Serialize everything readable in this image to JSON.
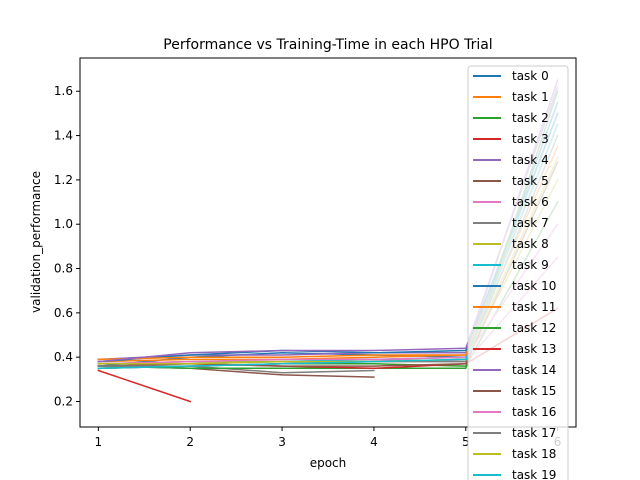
{
  "chart_data": {
    "type": "line",
    "title": "Performance vs Training-Time in each HPO Trial",
    "xlabel": "epoch",
    "ylabel": "validation_performance",
    "xlim": [
      0.8,
      6.2
    ],
    "ylim": [
      0.085,
      1.75
    ],
    "xticks": [
      1,
      2,
      3,
      4,
      5,
      6
    ],
    "yticks": [
      0.2,
      0.4,
      0.6,
      0.8,
      1.0,
      1.2,
      1.4,
      1.6
    ],
    "ytick_labels": [
      "0.2",
      "0.4",
      "0.6",
      "0.8",
      "1.0",
      "1.2",
      "1.4",
      "1.6"
    ],
    "legend_position": "upper right",
    "series": [
      {
        "name": "task 0",
        "color": "#1f77b4",
        "x": [
          1,
          2,
          3,
          4,
          5,
          6
        ],
        "y": [
          0.36,
          0.4,
          0.42,
          0.41,
          0.4,
          1.55
        ]
      },
      {
        "name": "task 1",
        "color": "#ff7f0e",
        "x": [
          1,
          2,
          3,
          4,
          5,
          6
        ],
        "y": [
          0.38,
          0.39,
          0.39,
          0.4,
          0.41,
          1.35
        ]
      },
      {
        "name": "task 2",
        "color": "#2ca02c",
        "x": [
          1,
          2,
          3,
          4,
          5,
          6
        ],
        "y": [
          0.35,
          0.36,
          0.37,
          0.37,
          0.36,
          1.1
        ]
      },
      {
        "name": "task 3",
        "color": "#d62728",
        "x": [
          1,
          2
        ],
        "y": [
          0.34,
          0.2
        ]
      },
      {
        "name": "task 4",
        "color": "#9467bd",
        "x": [
          1,
          2,
          3,
          4,
          5,
          6
        ],
        "y": [
          0.39,
          0.41,
          0.41,
          0.42,
          0.42,
          1.65
        ]
      },
      {
        "name": "task 5",
        "color": "#8c564b",
        "x": [
          1,
          2,
          3,
          4
        ],
        "y": [
          0.36,
          0.35,
          0.32,
          0.31
        ]
      },
      {
        "name": "task 6",
        "color": "#e377c2",
        "x": [
          1,
          2,
          3,
          4,
          5,
          6
        ],
        "y": [
          0.37,
          0.38,
          0.38,
          0.39,
          0.38,
          0.85
        ]
      },
      {
        "name": "task 7",
        "color": "#7f7f7f",
        "x": [
          1,
          2,
          3,
          4
        ],
        "y": [
          0.35,
          0.36,
          0.33,
          0.34
        ]
      },
      {
        "name": "task 8",
        "color": "#bcbd22",
        "x": [
          1,
          2,
          3,
          4,
          5,
          6
        ],
        "y": [
          0.37,
          0.38,
          0.38,
          0.38,
          0.39,
          1.2
        ]
      },
      {
        "name": "task 9",
        "color": "#17becf",
        "x": [
          1,
          2,
          3,
          4,
          5,
          6
        ],
        "y": [
          0.36,
          0.37,
          0.38,
          0.39,
          0.4,
          1.5
        ]
      },
      {
        "name": "task 10",
        "color": "#1f77b4",
        "x": [
          1,
          2,
          3,
          4,
          5,
          6
        ],
        "y": [
          0.38,
          0.41,
          0.43,
          0.42,
          0.43,
          1.5
        ]
      },
      {
        "name": "task 11",
        "color": "#ff7f0e",
        "x": [
          1,
          2,
          3,
          4,
          5,
          6
        ],
        "y": [
          0.39,
          0.4,
          0.4,
          0.41,
          0.41,
          1.45
        ]
      },
      {
        "name": "task 12",
        "color": "#2ca02c",
        "x": [
          1,
          2,
          3,
          4,
          5,
          6
        ],
        "y": [
          0.36,
          0.35,
          0.35,
          0.35,
          0.35,
          1.6
        ]
      },
      {
        "name": "task 13",
        "color": "#d62728",
        "x": [
          1,
          2,
          3,
          4,
          5,
          6
        ],
        "y": [
          0.37,
          0.37,
          0.36,
          0.35,
          0.37,
          0.62
        ]
      },
      {
        "name": "task 14",
        "color": "#9467bd",
        "x": [
          1,
          2,
          3,
          4,
          5,
          6
        ],
        "y": [
          0.38,
          0.42,
          0.43,
          0.43,
          0.44,
          1.62
        ]
      },
      {
        "name": "task 15",
        "color": "#8c564b",
        "x": [
          1,
          2,
          3,
          4,
          5,
          6
        ],
        "y": [
          0.36,
          0.37,
          0.36,
          0.36,
          0.37,
          1.28
        ]
      },
      {
        "name": "task 16",
        "color": "#e377c2",
        "x": [
          1,
          2,
          3,
          4,
          5,
          6
        ],
        "y": [
          0.37,
          0.38,
          0.39,
          0.39,
          0.4,
          1.0
        ]
      },
      {
        "name": "task 17",
        "color": "#7f7f7f",
        "x": [
          1,
          2,
          3,
          4,
          5,
          6
        ],
        "y": [
          0.36,
          0.36,
          0.37,
          0.38,
          0.38,
          1.4
        ]
      },
      {
        "name": "task 18",
        "color": "#bcbd22",
        "x": [
          1,
          2,
          3,
          4,
          5,
          6
        ],
        "y": [
          0.37,
          0.37,
          0.38,
          0.38,
          0.39,
          1.3
        ]
      },
      {
        "name": "task 19",
        "color": "#17becf",
        "x": [
          1,
          2,
          3,
          4,
          5,
          6
        ],
        "y": [
          0.35,
          0.36,
          0.37,
          0.38,
          0.39,
          1.45
        ]
      }
    ]
  }
}
